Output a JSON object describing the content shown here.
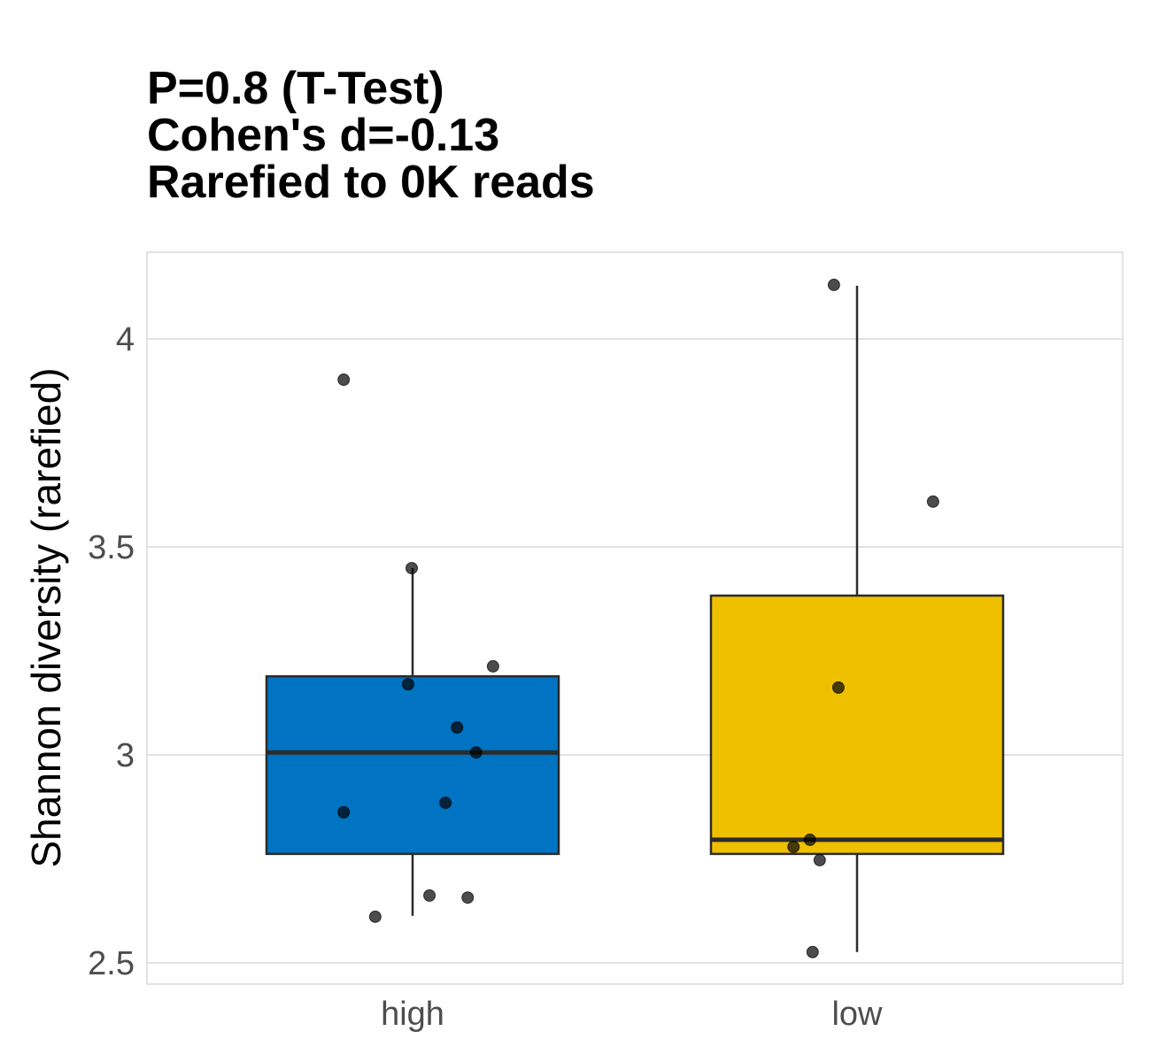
{
  "chart_data": {
    "type": "box",
    "title_lines": [
      "P=0.8 (T-Test)",
      "Cohen's d=-0.13",
      "Rarefied to 0K reads"
    ],
    "xlabel": "",
    "ylabel": "Shannon diversity (rarefied)",
    "ylim": [
      2.449,
      4.2085
    ],
    "yticks": [
      2.5,
      3,
      3.5,
      4
    ],
    "ytick_labels": [
      "2.5",
      "3",
      "3.5",
      "4"
    ],
    "grid": true,
    "legend": "none",
    "categories": [
      "high",
      "low"
    ],
    "colors": {
      "high": "#0073C2",
      "low": "#EFC000",
      "points": "#000000",
      "box_line": "#2b2b2b",
      "grid": "#d9d9d9"
    },
    "boxes": [
      {
        "name": "high",
        "q1": 2.762,
        "median": 3.006,
        "q3": 3.189,
        "whisker_low": 2.613,
        "whisker_high": 3.449
      },
      {
        "name": "low",
        "q1": 2.762,
        "median": 2.796,
        "q3": 3.383,
        "whisker_low": 2.526,
        "whisker_high": 4.128
      }
    ],
    "points": [
      {
        "group": "high",
        "jitter": -0.155,
        "y": 3.902
      },
      {
        "group": "high",
        "jitter": -0.002,
        "y": 3.449
      },
      {
        "group": "high",
        "jitter": 0.181,
        "y": 3.213
      },
      {
        "group": "high",
        "jitter": -0.01,
        "y": 3.17
      },
      {
        "group": "high",
        "jitter": 0.1,
        "y": 3.066
      },
      {
        "group": "high",
        "jitter": 0.143,
        "y": 3.006
      },
      {
        "group": "high",
        "jitter": -0.155,
        "y": 2.862
      },
      {
        "group": "high",
        "jitter": 0.074,
        "y": 2.885
      },
      {
        "group": "high",
        "jitter": 0.038,
        "y": 2.662
      },
      {
        "group": "high",
        "jitter": 0.124,
        "y": 2.657
      },
      {
        "group": "high",
        "jitter": -0.084,
        "y": 2.611
      },
      {
        "group": "low",
        "jitter": -0.052,
        "y": 4.13
      },
      {
        "group": "low",
        "jitter": 0.171,
        "y": 3.609
      },
      {
        "group": "low",
        "jitter": -0.042,
        "y": 3.162
      },
      {
        "group": "low",
        "jitter": -0.106,
        "y": 2.796
      },
      {
        "group": "low",
        "jitter": -0.143,
        "y": 2.779
      },
      {
        "group": "low",
        "jitter": -0.084,
        "y": 2.747
      },
      {
        "group": "low",
        "jitter": -0.1,
        "y": 2.526
      }
    ]
  }
}
